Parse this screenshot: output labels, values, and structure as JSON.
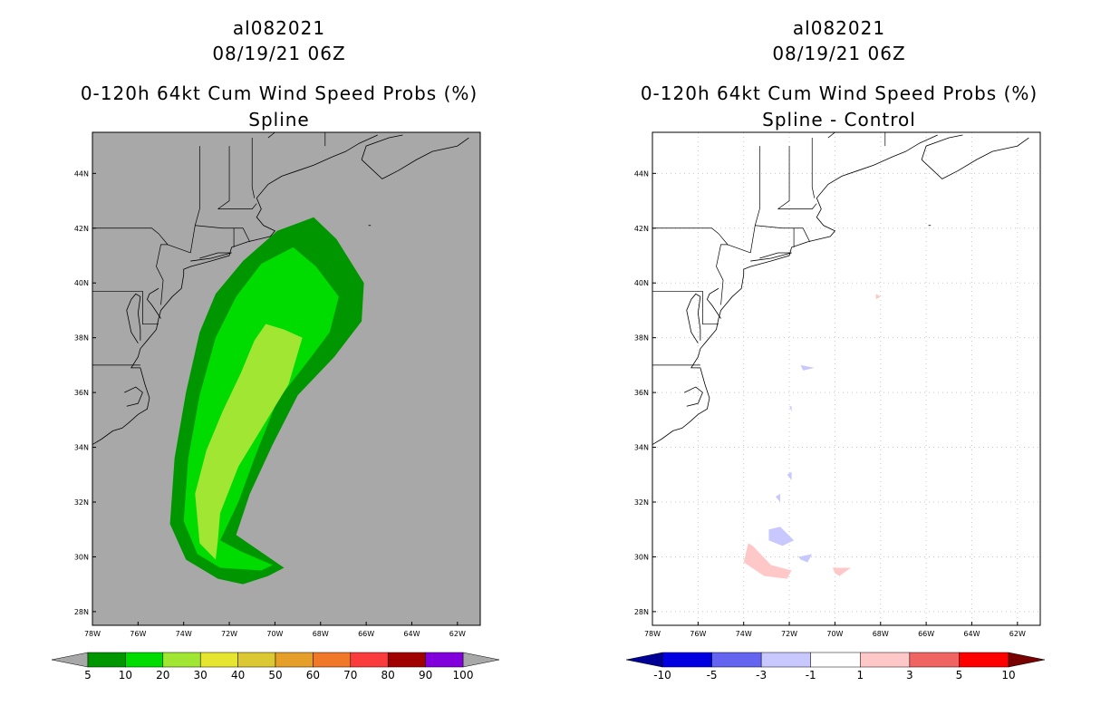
{
  "chart_data": [
    {
      "type": "heatmap",
      "panel": "left",
      "storm_id": "al082021",
      "datetime": "08/19/21 06Z",
      "title": "0-120h 64kt Cum Wind Speed Probs (%)",
      "subtitle": "Spline",
      "x_ticks": [
        "78W",
        "76W",
        "74W",
        "72W",
        "70W",
        "68W",
        "66W",
        "64W",
        "62W"
      ],
      "y_ticks": [
        "44N",
        "42N",
        "40N",
        "38N",
        "36N",
        "34N",
        "32N",
        "30N",
        "28N"
      ],
      "xlim": [
        -78,
        -61
      ],
      "ylim": [
        27.5,
        45.5
      ],
      "background_color": "#a8a8a8",
      "colorbar": {
        "labels": [
          "5",
          "10",
          "20",
          "30",
          "40",
          "50",
          "60",
          "70",
          "80",
          "90",
          "100"
        ],
        "colors": [
          "#009600",
          "#00dc00",
          "#a0e632",
          "#e6e632",
          "#dcc832",
          "#e6a02a",
          "#f07828",
          "#fa3c3c",
          "#a00000",
          "#8200dc"
        ],
        "under_color": "#a8a8a8",
        "over_color": "#a8a8a8"
      },
      "contours": [
        {
          "level": "5-10",
          "color": "#009600",
          "points": [
            [
              -72.5,
              29.2
            ],
            [
              -73.9,
              29.9
            ],
            [
              -74.6,
              31.2
            ],
            [
              -74.4,
              33.6
            ],
            [
              -73.9,
              36.0
            ],
            [
              -73.3,
              38.2
            ],
            [
              -72.6,
              39.6
            ],
            [
              -71.4,
              40.8
            ],
            [
              -69.9,
              41.9
            ],
            [
              -68.3,
              42.4
            ],
            [
              -67.3,
              41.6
            ],
            [
              -66.1,
              40.0
            ],
            [
              -66.2,
              38.6
            ],
            [
              -67.4,
              37.3
            ],
            [
              -69.0,
              35.9
            ],
            [
              -70.1,
              34.1
            ],
            [
              -71.1,
              32.3
            ],
            [
              -71.7,
              30.8
            ],
            [
              -69.6,
              29.6
            ],
            [
              -70.3,
              29.3
            ],
            [
              -71.4,
              29.0
            ]
          ]
        },
        {
          "level": "10-20",
          "color": "#00dc00",
          "points": [
            [
              -72.4,
              29.6
            ],
            [
              -73.4,
              30.1
            ],
            [
              -74.0,
              31.3
            ],
            [
              -73.8,
              33.6
            ],
            [
              -73.3,
              35.9
            ],
            [
              -72.6,
              38.0
            ],
            [
              -71.7,
              39.5
            ],
            [
              -70.6,
              40.7
            ],
            [
              -69.2,
              41.3
            ],
            [
              -68.2,
              40.6
            ],
            [
              -67.2,
              39.5
            ],
            [
              -67.6,
              38.2
            ],
            [
              -68.5,
              37.2
            ],
            [
              -69.9,
              35.7
            ],
            [
              -70.9,
              33.6
            ],
            [
              -71.6,
              32.0
            ],
            [
              -72.4,
              30.6
            ],
            [
              -71.5,
              30.2
            ],
            [
              -70.1,
              29.7
            ],
            [
              -70.6,
              29.5
            ]
          ]
        },
        {
          "level": "20-30",
          "color": "#a0e632",
          "points": [
            [
              -72.6,
              29.9
            ],
            [
              -73.3,
              30.5
            ],
            [
              -73.5,
              32.3
            ],
            [
              -73.0,
              33.9
            ],
            [
              -72.3,
              35.3
            ],
            [
              -71.5,
              36.7
            ],
            [
              -70.9,
              37.9
            ],
            [
              -70.4,
              38.5
            ],
            [
              -69.6,
              38.3
            ],
            [
              -68.8,
              38.0
            ],
            [
              -69.4,
              36.3
            ],
            [
              -70.5,
              34.8
            ],
            [
              -71.6,
              33.3
            ],
            [
              -72.4,
              31.6
            ],
            [
              -72.5,
              30.6
            ]
          ]
        }
      ]
    },
    {
      "type": "heatmap",
      "panel": "right",
      "storm_id": "al082021",
      "datetime": "08/19/21 06Z",
      "title": "0-120h 64kt Cum Wind Speed Probs (%)",
      "subtitle": "Spline - Control",
      "x_ticks": [
        "78W",
        "76W",
        "74W",
        "72W",
        "70W",
        "68W",
        "66W",
        "64W",
        "62W"
      ],
      "y_ticks": [
        "44N",
        "42N",
        "40N",
        "38N",
        "36N",
        "34N",
        "32N",
        "30N",
        "28N"
      ],
      "xlim": [
        -78,
        -61
      ],
      "ylim": [
        27.5,
        45.5
      ],
      "background_color": "#ffffff",
      "colorbar": {
        "labels": [
          "-10",
          "-5",
          "-3",
          "-1",
          "1",
          "3",
          "5",
          "10"
        ],
        "colors": [
          "#0000e0",
          "#6464f0",
          "#c8c8ff",
          "#ffffff",
          "#ffc8c8",
          "#f06464",
          "#ff0000"
        ],
        "under_color": "#000096",
        "over_color": "#780000"
      },
      "contours": [
        {
          "level": "1-3",
          "color": "#ffc8c8",
          "points": [
            [
              -74.0,
              29.8
            ],
            [
              -73.8,
              30.5
            ],
            [
              -73.6,
              30.4
            ],
            [
              -72.8,
              29.7
            ],
            [
              -71.9,
              29.5
            ],
            [
              -72.1,
              29.2
            ],
            [
              -73.1,
              29.3
            ]
          ]
        },
        {
          "level": "1-3",
          "color": "#ffc8c8",
          "points": [
            [
              -70.1,
              29.6
            ],
            [
              -69.3,
              29.6
            ],
            [
              -69.8,
              29.3
            ],
            [
              -70.0,
              29.4
            ]
          ]
        },
        {
          "level": "1-3",
          "color": "#ffc8c8",
          "points": [
            [
              -68.2,
              39.6
            ],
            [
              -68.0,
              39.5
            ],
            [
              -68.2,
              39.4
            ]
          ]
        },
        {
          "level": "-1--3",
          "color": "#c8c8ff",
          "points": [
            [
              -72.9,
              31.0
            ],
            [
              -72.4,
              31.1
            ],
            [
              -71.8,
              30.6
            ],
            [
              -72.3,
              30.4
            ],
            [
              -72.9,
              30.6
            ]
          ]
        },
        {
          "level": "-1--3",
          "color": "#c8c8ff",
          "points": [
            [
              -71.6,
              30.0
            ],
            [
              -71.0,
              30.1
            ],
            [
              -71.2,
              29.8
            ],
            [
              -71.5,
              29.9
            ]
          ]
        },
        {
          "level": "-1--3",
          "color": "#c8c8ff",
          "points": [
            [
              -72.6,
              32.2
            ],
            [
              -72.4,
              32.3
            ],
            [
              -72.4,
              32.0
            ]
          ]
        },
        {
          "level": "-1--3",
          "color": "#c8c8ff",
          "points": [
            [
              -72.1,
              33.0
            ],
            [
              -71.9,
              33.1
            ],
            [
              -71.9,
              32.8
            ]
          ]
        },
        {
          "level": "-1--3",
          "color": "#c8c8ff",
          "points": [
            [
              -71.5,
              37.0
            ],
            [
              -70.9,
              36.9
            ],
            [
              -71.4,
              36.8
            ]
          ]
        },
        {
          "level": "-1--3",
          "color": "#c8c8ff",
          "points": [
            [
              -72.0,
              35.5
            ],
            [
              -71.9,
              35.5
            ],
            [
              -71.9,
              35.3
            ]
          ]
        }
      ]
    }
  ]
}
